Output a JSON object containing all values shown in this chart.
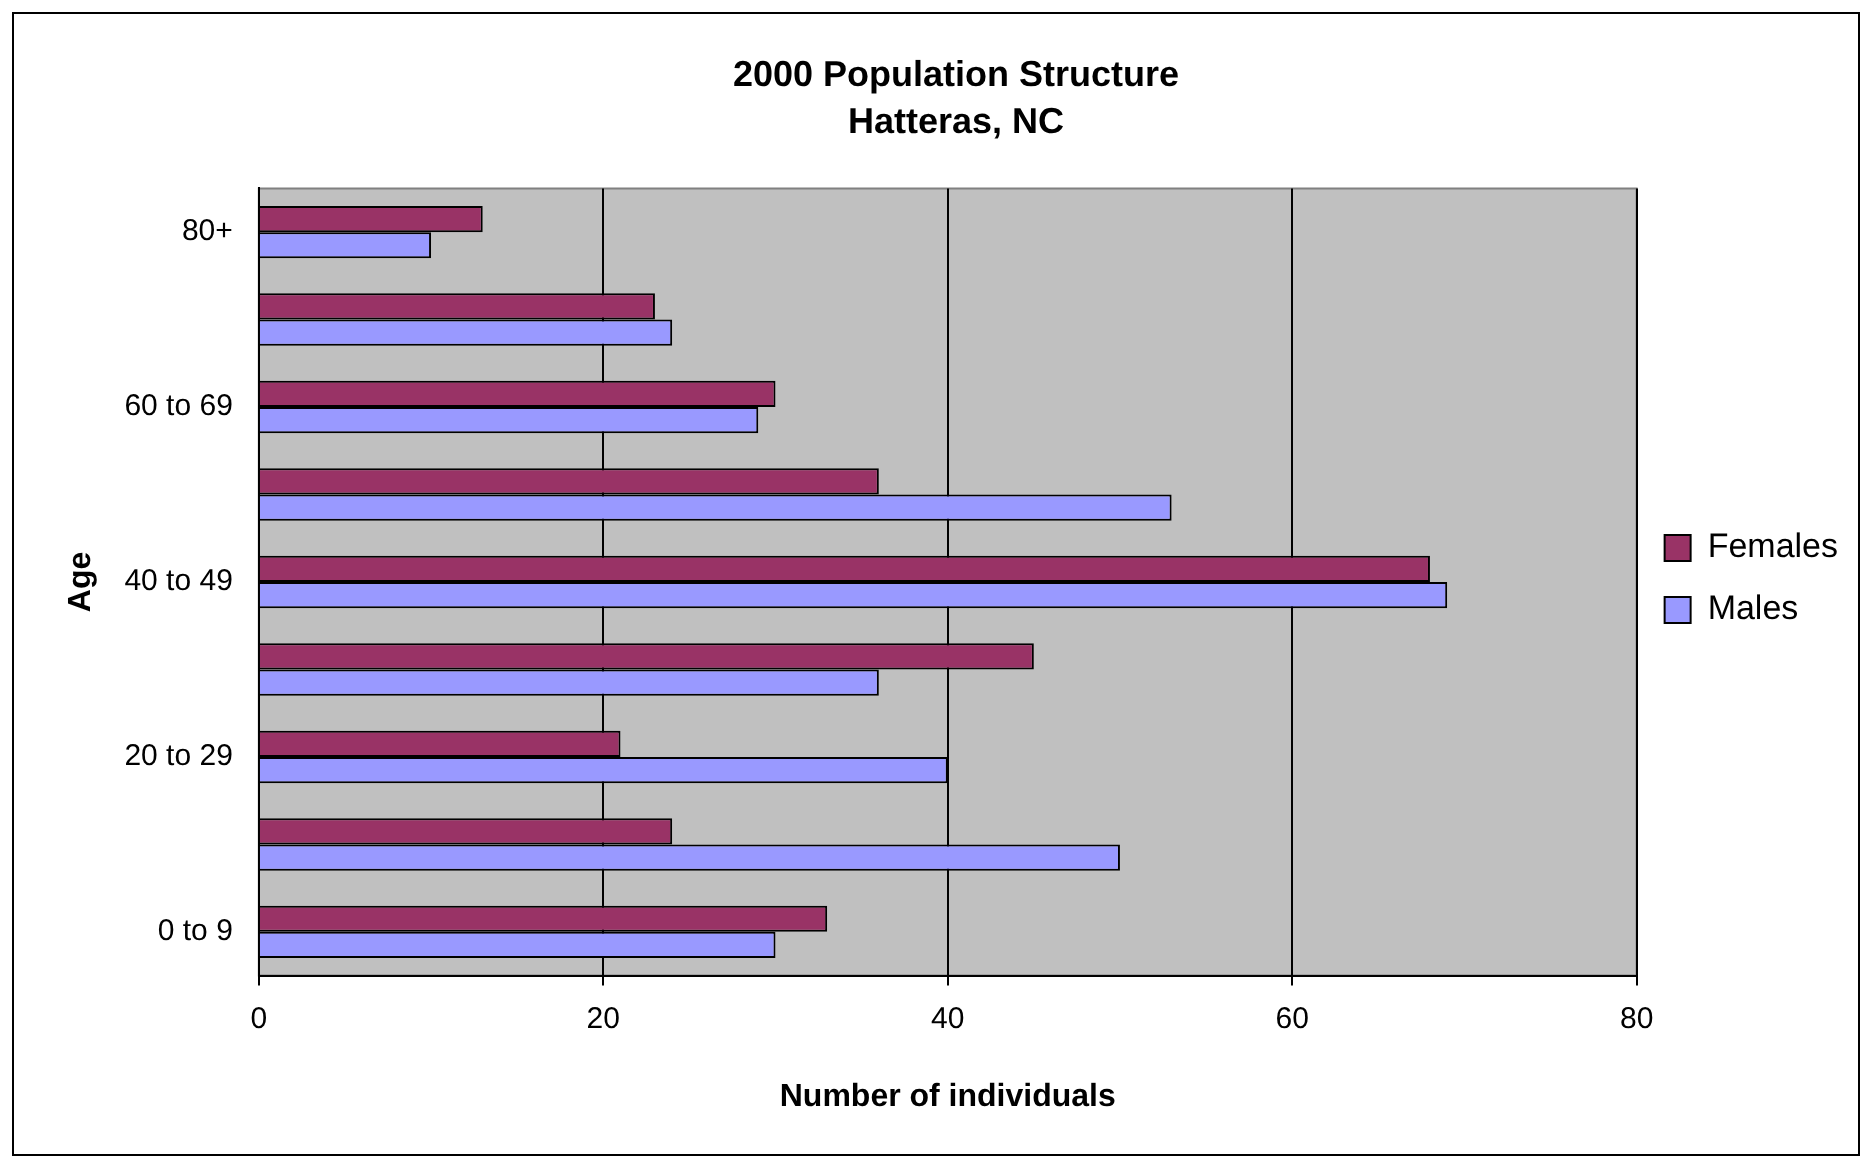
{
  "chart_data": {
    "type": "bar",
    "orientation": "horizontal",
    "title": "2000 Population Structure",
    "subtitle": "Hatteras, NC",
    "xlabel": "Number of individuals",
    "ylabel": "Age",
    "categories": [
      "80+",
      null,
      "60 to 69",
      null,
      "40 to 49",
      null,
      "20 to 29",
      null,
      "0 to 9"
    ],
    "series": [
      {
        "name": "Females",
        "color": "#993366",
        "values": [
          13,
          23,
          30,
          36,
          68,
          45,
          21,
          24,
          33
        ]
      },
      {
        "name": "Males",
        "color": "#9999ff",
        "values": [
          10,
          24,
          29,
          53,
          69,
          36,
          40,
          50,
          30
        ]
      }
    ],
    "xlim": [
      0,
      80
    ],
    "xticks": [
      0,
      20,
      40,
      60,
      80
    ],
    "grid": "x",
    "legend": "right"
  }
}
